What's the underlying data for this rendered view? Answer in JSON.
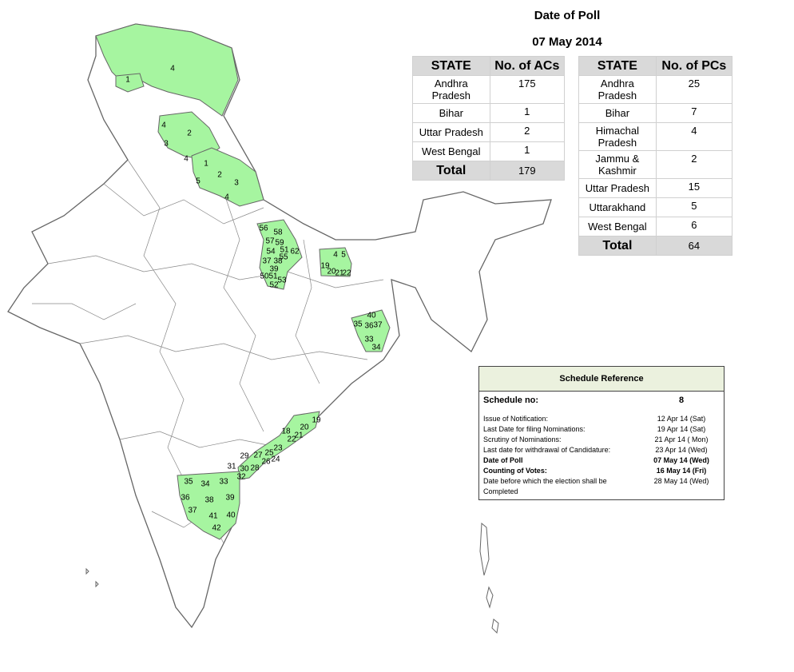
{
  "header": {
    "title": "Date of Poll",
    "date": "07 May 2014"
  },
  "ac_table": {
    "columns": [
      "STATE",
      "No. of ACs"
    ],
    "rows": [
      [
        "Andhra Pradesh",
        175
      ],
      [
        "Bihar",
        1
      ],
      [
        "Uttar Pradesh",
        2
      ],
      [
        "West Bengal",
        1
      ]
    ],
    "total": [
      "Total",
      179
    ]
  },
  "pc_table": {
    "columns": [
      "STATE",
      "No. of PCs"
    ],
    "rows": [
      [
        "Andhra Pradesh",
        25
      ],
      [
        "Bihar",
        7
      ],
      [
        "Himachal Pradesh",
        4
      ],
      [
        "Jammu & Kashmir",
        2
      ],
      [
        "Uttar Pradesh",
        15
      ],
      [
        "Uttarakhand",
        5
      ],
      [
        "West Bengal",
        6
      ]
    ],
    "total": [
      "Total",
      64
    ]
  },
  "schedule": {
    "title": "Schedule Reference",
    "number_label": "Schedule no:",
    "number": 8,
    "items": [
      {
        "label": "Issue of Notification:",
        "value": "12 Apr 14 (Sat)"
      },
      {
        "label": "Last Date for filing Nominations:",
        "value": "19 Apr 14 (Sat)"
      },
      {
        "label": "Scrutiny of Nominations:",
        "value": "21 Apr 14 ( Mon)"
      },
      {
        "label": "Last date for withdrawal of Candidature:",
        "value": "23 Apr 14 (Wed)"
      },
      {
        "label": "Date of Poll",
        "value": "07 May 14 (Wed)"
      },
      {
        "label": "Counting of Votes:",
        "value": "16 May 14 (Fri)"
      },
      {
        "label": "Date before which the election shall be Completed",
        "value": "28 May 14 (Wed)"
      }
    ]
  },
  "map": {
    "labels": [
      4,
      1,
      4,
      2,
      3,
      4,
      1,
      2,
      5,
      3,
      4,
      56,
      58,
      57,
      59,
      54,
      51,
      62,
      55,
      37,
      38,
      39,
      50,
      51,
      53,
      52,
      4,
      5,
      19,
      20,
      21,
      22,
      40,
      35,
      36,
      37,
      33,
      34,
      19,
      20,
      18,
      21,
      22,
      23,
      25,
      29,
      27,
      24,
      26,
      31,
      30,
      28,
      32,
      35,
      34,
      33,
      36,
      38,
      39,
      37,
      41,
      40,
      42
    ]
  }
}
